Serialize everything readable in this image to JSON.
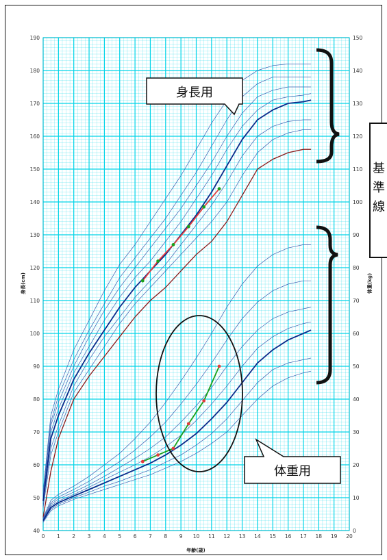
{
  "chart_data": {
    "type": "line",
    "xlabel": "年齢(歳)",
    "ylabel_left": "身長(cm)",
    "ylabel_right": "体重(kg)",
    "xlim": [
      0,
      20
    ],
    "ylim_left": [
      40,
      190
    ],
    "ylim_right": [
      0,
      150
    ],
    "x_ticks": [
      "0",
      "1",
      "2",
      "3",
      "4",
      "5",
      "6",
      "7",
      "8",
      "9",
      "10",
      "11",
      "12",
      "13",
      "14",
      "15",
      "16",
      "17",
      "18",
      "19",
      "20"
    ],
    "y_ticks_left": [
      "40",
      "50",
      "60",
      "70",
      "80",
      "90",
      "100",
      "110",
      "120",
      "130",
      "140",
      "150",
      "160",
      "170",
      "180",
      "190"
    ],
    "y_ticks_right": [
      "0",
      "10",
      "20",
      "30",
      "40",
      "50",
      "60",
      "70",
      "80",
      "90",
      "100",
      "110",
      "120",
      "130",
      "140",
      "150"
    ],
    "grid": true,
    "grid_color": "#00d4e8",
    "height_reference": {
      "ages": [
        0,
        0.5,
        1,
        2,
        3,
        4,
        5,
        6,
        7,
        8,
        9,
        10,
        11,
        12,
        13,
        14,
        15,
        16,
        17,
        17.5
      ],
      "lower_line_color": "#8b1a1a",
      "median_color": "#0a2a8a",
      "percentile_color": "#3a5fb0",
      "lower_bound": [
        44,
        58,
        68,
        80,
        87,
        93,
        99,
        105,
        110,
        114,
        119,
        124,
        128,
        134,
        142,
        150,
        153,
        155,
        156,
        156
      ],
      "median": [
        49,
        68,
        75,
        86,
        94,
        101,
        108,
        114,
        119,
        124,
        130,
        136,
        143,
        151,
        159,
        165,
        168,
        170,
        170.5,
        171
      ],
      "percentiles": [
        [
          47,
          63,
          70,
          82,
          89,
          96,
          103,
          109,
          114,
          119,
          124,
          129,
          134,
          140,
          148,
          155,
          159,
          161,
          162,
          162
        ],
        [
          48,
          65,
          72,
          84,
          92,
          99,
          105,
          111,
          116,
          121,
          127,
          133,
          139,
          146,
          154,
          160,
          163,
          164.5,
          165,
          165
        ],
        [
          49.5,
          70,
          77,
          88,
          96,
          104,
          111,
          117,
          122,
          128,
          134,
          141,
          148,
          156,
          163,
          168,
          171,
          172,
          172.5,
          173
        ],
        [
          50.5,
          72,
          79,
          90,
          99,
          107,
          114,
          120,
          126,
          132,
          138,
          145,
          152,
          160,
          167,
          172,
          174,
          175,
          175,
          175
        ],
        [
          51,
          73,
          81,
          92,
          101,
          109,
          117,
          123,
          129,
          135,
          142,
          149,
          157,
          165,
          172,
          176,
          178,
          178,
          178,
          178
        ],
        [
          52,
          75,
          83,
          95,
          104,
          113,
          121,
          127,
          134,
          141,
          148,
          156,
          164,
          171,
          177,
          180,
          181.5,
          182,
          182,
          182
        ]
      ],
      "patient_ages": [
        6.5,
        7.5,
        8.5,
        9.5,
        10.5,
        11.5
      ],
      "patient_values": [
        116,
        122,
        127,
        132.5,
        138.5,
        144
      ],
      "patient_line_color": "#e23c3c"
    },
    "weight_reference": {
      "ages": [
        0,
        0.5,
        1,
        2,
        3,
        4,
        5,
        6,
        7,
        8,
        9,
        10,
        11,
        12,
        13,
        14,
        15,
        16,
        17,
        17.5
      ],
      "median_color": "#0a2a8a",
      "percentile_color": "#3a5fb0",
      "median": [
        3,
        7,
        8.5,
        10.5,
        12.5,
        14.5,
        16.5,
        18.5,
        20.5,
        23,
        26,
        29.5,
        34,
        39,
        45,
        51,
        55,
        58,
        60,
        61
      ],
      "percentiles": [
        [
          2.5,
          6,
          7.5,
          9.5,
          11,
          12.5,
          14,
          15.5,
          17,
          19,
          21,
          23.5,
          26.5,
          30,
          35,
          40,
          44,
          46.5,
          48,
          48.5
        ],
        [
          2.8,
          6.5,
          8,
          10,
          11.7,
          13.5,
          15,
          16.8,
          18.5,
          20.8,
          23,
          26,
          29.5,
          34,
          39.5,
          45,
          49,
          51,
          52,
          52.5
        ],
        [
          3.2,
          7.5,
          9,
          11,
          13.2,
          15.5,
          17.8,
          20,
          22.5,
          25.5,
          29,
          33.5,
          38.5,
          44,
          50,
          55.5,
          59,
          61.5,
          63,
          63.5
        ],
        [
          3.4,
          8,
          9.6,
          11.7,
          14,
          16.5,
          19.2,
          22,
          25,
          28.5,
          33,
          38,
          43.5,
          50,
          56,
          61,
          64.5,
          66.5,
          67.5,
          68
        ],
        [
          3.6,
          8.5,
          10.2,
          12.5,
          15,
          18,
          21,
          24.5,
          28.5,
          33,
          38.5,
          44.5,
          51,
          58,
          64.5,
          69.5,
          73,
          75,
          76,
          76
        ],
        [
          3.9,
          9.2,
          11,
          13.5,
          16.5,
          20,
          23.5,
          28,
          33,
          39,
          45.5,
          52.5,
          60,
          68,
          75,
          80.5,
          84,
          86,
          87,
          87
        ]
      ],
      "patient_ages": [
        6.5,
        7.5,
        8.5,
        9.5,
        10.5,
        11.5
      ],
      "patient_values": [
        21,
        23,
        25,
        32.5,
        39.5,
        50
      ],
      "patient_line_color": "#1aa01a"
    },
    "annotations": [
      {
        "id": "height",
        "text": "身長用"
      },
      {
        "id": "weight",
        "text": "体重用"
      },
      {
        "id": "reference",
        "text": "基準線"
      }
    ]
  }
}
